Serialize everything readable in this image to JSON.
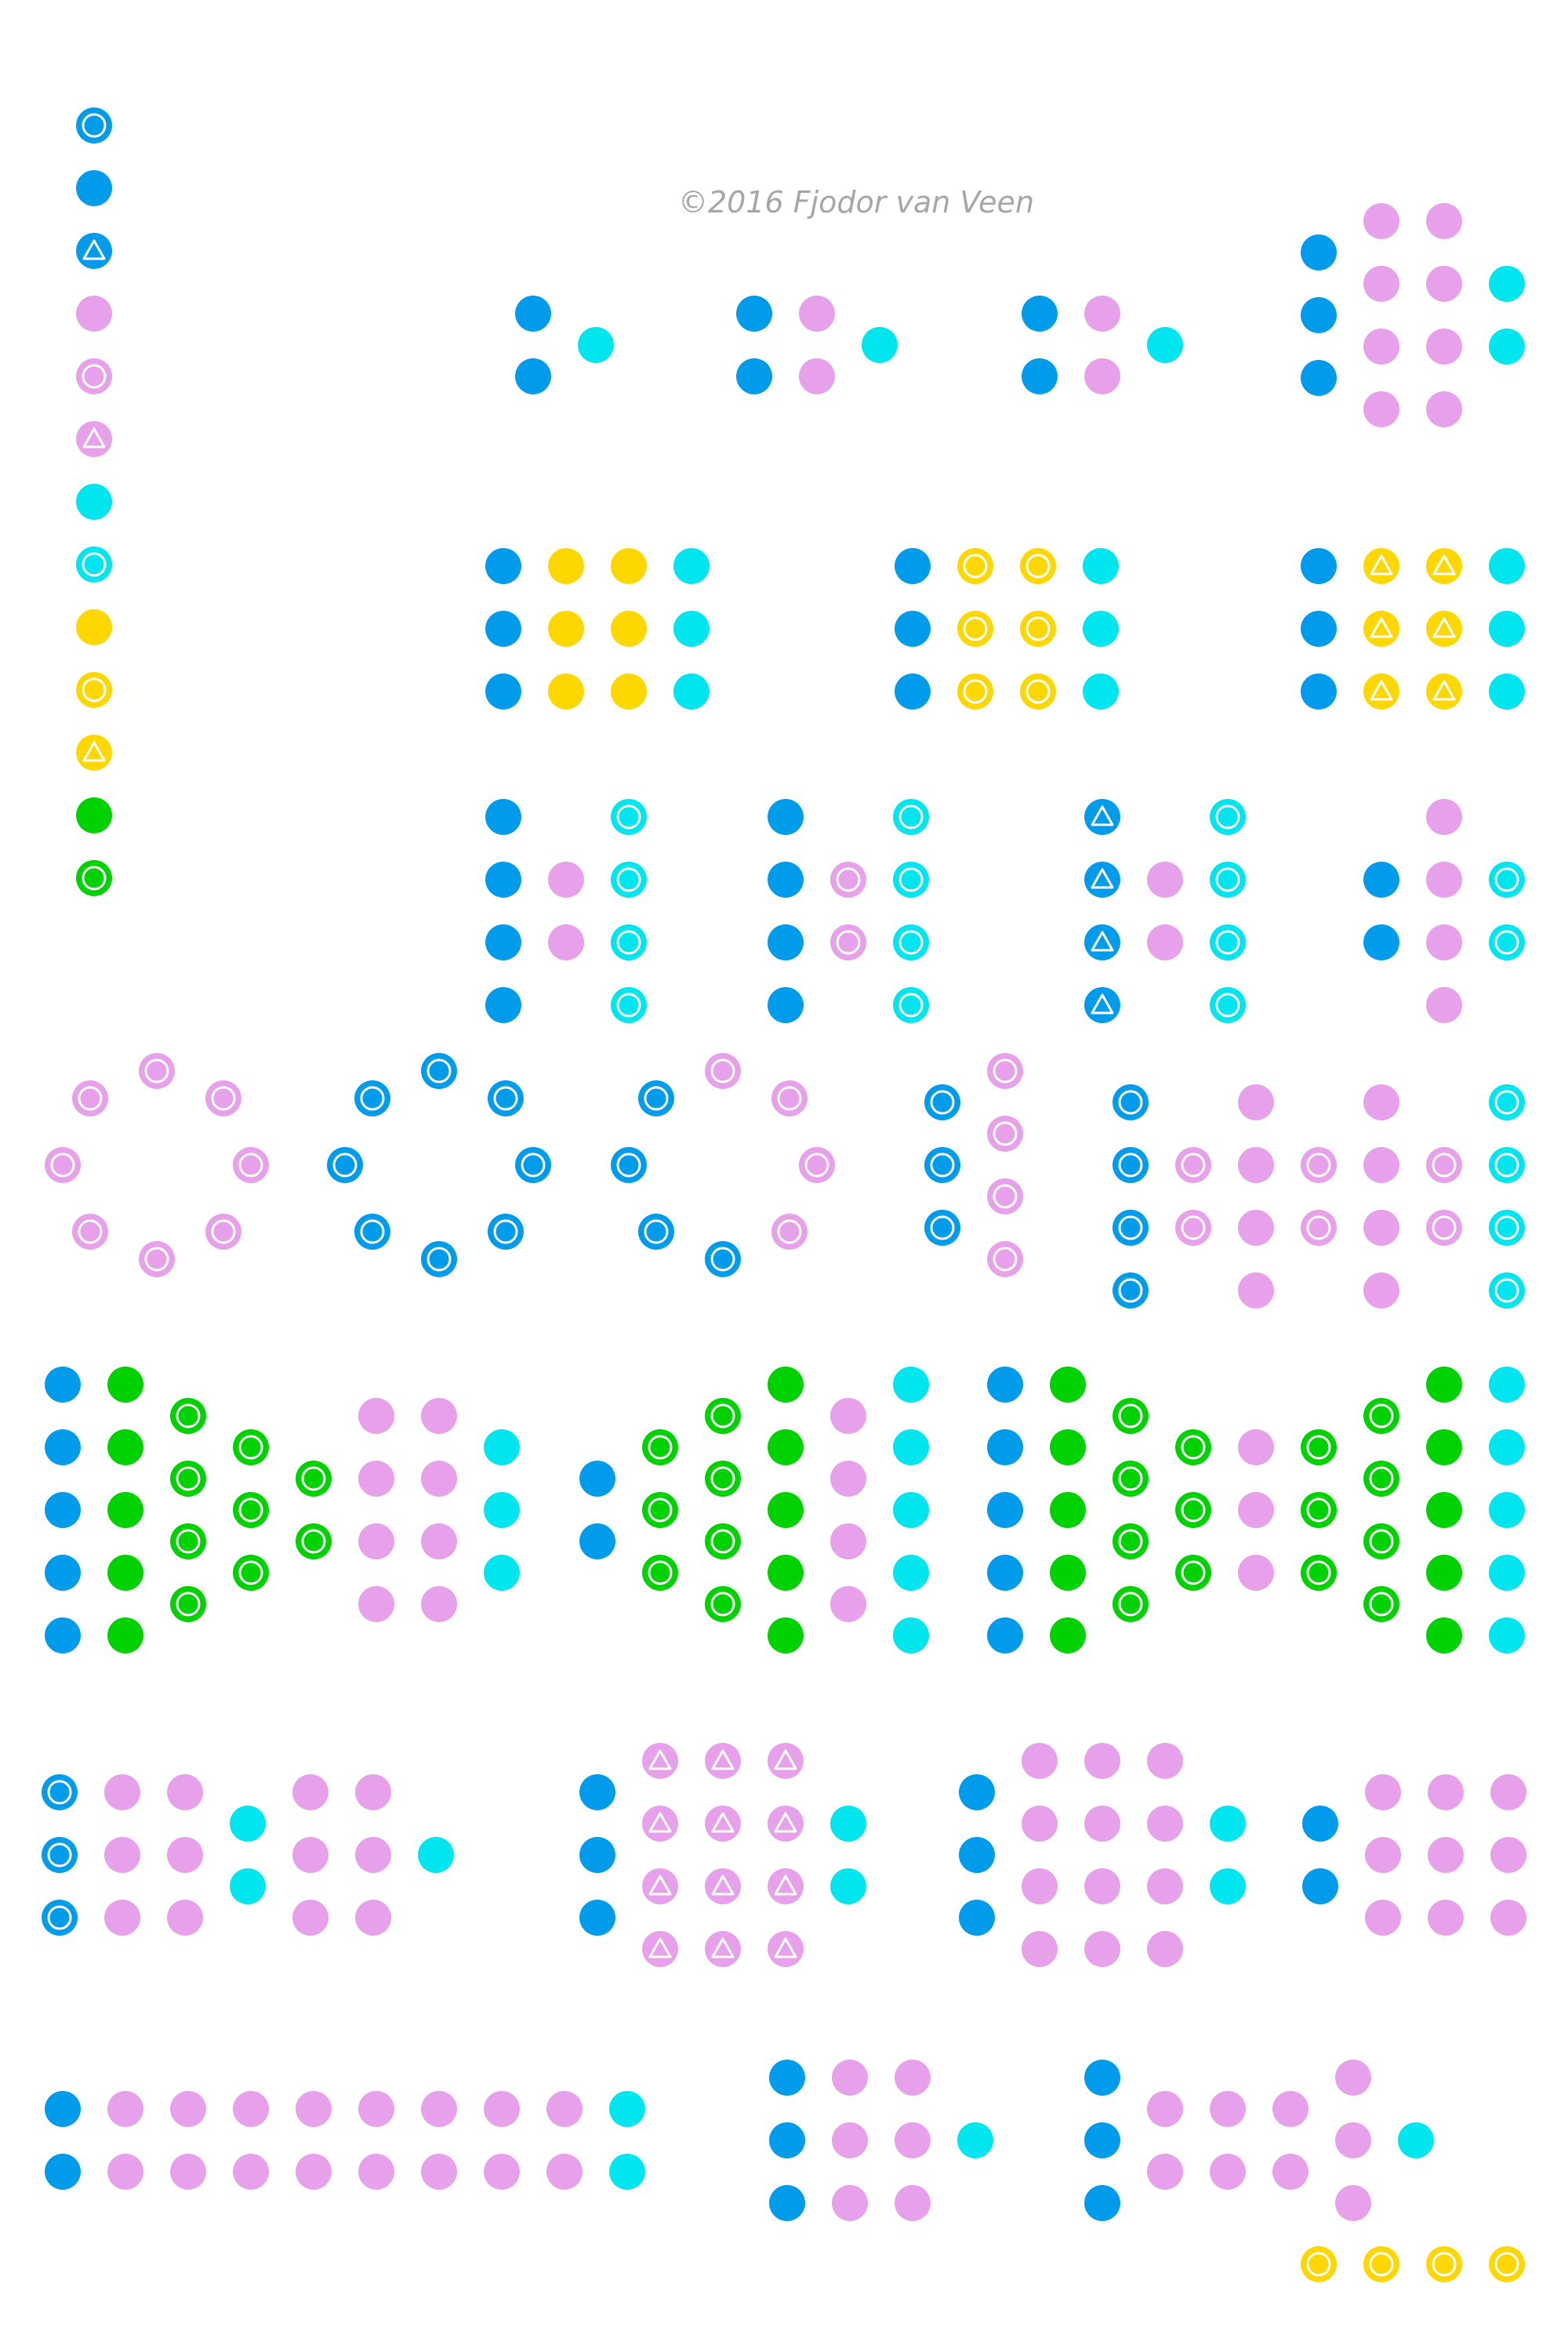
{
  "credit": "©2016 Fjodor van Veen",
  "colors": {
    "input": "#009ceb",
    "hidden": "#e6a1ea",
    "output": "#00e5ee",
    "yellow": "#ffd700",
    "green": "#00d100",
    "background": "#ffffff"
  },
  "legend": [
    {
      "color": "input",
      "marker": "circle"
    },
    {
      "color": "input",
      "marker": "none"
    },
    {
      "color": "input",
      "marker": "triangle"
    },
    {
      "color": "hidden",
      "marker": "none"
    },
    {
      "color": "hidden",
      "marker": "circle"
    },
    {
      "color": "hidden",
      "marker": "triangle"
    },
    {
      "color": "output",
      "marker": "none"
    },
    {
      "color": "output",
      "marker": "circle"
    },
    {
      "color": "yellow",
      "marker": "none"
    },
    {
      "color": "yellow",
      "marker": "circle"
    },
    {
      "color": "yellow",
      "marker": "triangle"
    },
    {
      "color": "green",
      "marker": "none"
    },
    {
      "color": "green",
      "marker": "circle"
    }
  ],
  "networks": [
    {
      "layers": [
        {
          "color": "input",
          "marker": "none",
          "count": 2
        },
        {
          "color": "output",
          "marker": "none",
          "count": 1
        }
      ]
    },
    {
      "layers": [
        {
          "color": "input",
          "marker": "none",
          "count": 2
        },
        {
          "color": "hidden",
          "marker": "none",
          "count": 2
        },
        {
          "color": "output",
          "marker": "none",
          "count": 1
        }
      ]
    },
    {
      "layers": [
        {
          "color": "input",
          "marker": "none",
          "count": 2
        },
        {
          "color": "hidden",
          "marker": "none",
          "count": 2
        },
        {
          "color": "output",
          "marker": "none",
          "count": 1
        }
      ]
    },
    {
      "layers": [
        {
          "color": "input",
          "marker": "none",
          "count": 3
        },
        {
          "color": "hidden",
          "marker": "none",
          "count": 4
        },
        {
          "color": "hidden",
          "marker": "none",
          "count": 4
        },
        {
          "color": "output",
          "marker": "none",
          "count": 2
        }
      ]
    },
    {
      "layers": [
        {
          "color": "input",
          "marker": "none",
          "count": 3
        },
        {
          "color": "yellow",
          "marker": "none",
          "count": 3
        },
        {
          "color": "yellow",
          "marker": "none",
          "count": 3
        },
        {
          "color": "output",
          "marker": "none",
          "count": 3
        }
      ]
    },
    {
      "layers": [
        {
          "color": "input",
          "marker": "none",
          "count": 3
        },
        {
          "color": "yellow",
          "marker": "circle",
          "count": 3
        },
        {
          "color": "yellow",
          "marker": "circle",
          "count": 3
        },
        {
          "color": "output",
          "marker": "none",
          "count": 3
        }
      ]
    },
    {
      "layers": [
        {
          "color": "input",
          "marker": "none",
          "count": 3
        },
        {
          "color": "yellow",
          "marker": "triangle",
          "count": 3
        },
        {
          "color": "yellow",
          "marker": "triangle",
          "count": 3
        },
        {
          "color": "output",
          "marker": "none",
          "count": 3
        }
      ]
    },
    {
      "layers": [
        {
          "color": "input",
          "marker": "none",
          "count": 4
        },
        {
          "color": "hidden",
          "marker": "none",
          "count": 2
        },
        {
          "color": "output",
          "marker": "circle",
          "count": 4
        }
      ]
    },
    {
      "layers": [
        {
          "color": "input",
          "marker": "none",
          "count": 4
        },
        {
          "color": "hidden",
          "marker": "circle",
          "count": 2
        },
        {
          "color": "output",
          "marker": "circle",
          "count": 4
        }
      ]
    },
    {
      "layers": [
        {
          "color": "input",
          "marker": "triangle",
          "count": 4
        },
        {
          "color": "hidden",
          "marker": "none",
          "count": 2
        },
        {
          "color": "output",
          "marker": "circle",
          "count": 4
        }
      ]
    },
    {
      "layers": [
        {
          "color": "input",
          "marker": "none",
          "count": 2
        },
        {
          "color": "hidden",
          "marker": "none",
          "count": 4
        },
        {
          "color": "output",
          "marker": "circle",
          "count": 2
        }
      ]
    },
    {
      "ring": {
        "color": "hidden",
        "marker": "circle"
      }
    },
    {
      "ring": {
        "color": "input",
        "marker": "circle"
      }
    },
    {
      "ring": {
        "color": "mixed",
        "marker": "circle"
      }
    },
    {
      "layers": [
        {
          "color": "input",
          "marker": "circle",
          "count": 3
        },
        {
          "color": "hidden",
          "marker": "circle",
          "count": 4
        }
      ]
    },
    {
      "layers": [
        {
          "color": "input",
          "marker": "circle",
          "count": 4
        },
        {
          "color": "hidden",
          "marker": "circle",
          "count": 2
        },
        {
          "color": "hidden",
          "marker": "none",
          "count": 4
        },
        {
          "color": "hidden",
          "marker": "circle",
          "count": 2
        },
        {
          "color": "hidden",
          "marker": "none",
          "count": 4
        },
        {
          "color": "hidden",
          "marker": "circle",
          "count": 2
        },
        {
          "color": "output",
          "marker": "circle",
          "count": 4
        }
      ]
    },
    {
      "layers": [
        {
          "color": "input",
          "marker": "none",
          "count": 5
        },
        {
          "color": "green",
          "marker": "none",
          "count": 5
        },
        {
          "color": "green",
          "marker": "circle",
          "count": 4
        },
        {
          "color": "green",
          "marker": "circle",
          "count": 3
        },
        {
          "color": "green",
          "marker": "circle",
          "count": 2
        },
        {
          "color": "hidden",
          "marker": "none",
          "count": 4
        },
        {
          "color": "hidden",
          "marker": "none",
          "count": 4
        },
        {
          "color": "output",
          "marker": "none",
          "count": 3
        }
      ]
    },
    {
      "layers": [
        {
          "color": "input",
          "marker": "none",
          "count": 2
        },
        {
          "color": "green",
          "marker": "circle",
          "count": 3
        },
        {
          "color": "green",
          "marker": "circle",
          "count": 4
        },
        {
          "color": "green",
          "marker": "none",
          "count": 5
        },
        {
          "color": "hidden",
          "marker": "none",
          "count": 4
        },
        {
          "color": "output",
          "marker": "none",
          "count": 5
        }
      ]
    },
    {
      "layers": [
        {
          "color": "input",
          "marker": "none",
          "count": 5
        },
        {
          "color": "green",
          "marker": "none",
          "count": 5
        },
        {
          "color": "green",
          "marker": "circle",
          "count": 4
        },
        {
          "color": "green",
          "marker": "circle",
          "count": 3
        },
        {
          "color": "hidden",
          "marker": "none",
          "count": 3
        },
        {
          "color": "green",
          "marker": "circle",
          "count": 3
        },
        {
          "color": "green",
          "marker": "circle",
          "count": 4
        },
        {
          "color": "green",
          "marker": "none",
          "count": 5
        },
        {
          "color": "output",
          "marker": "none",
          "count": 5
        }
      ]
    },
    {
      "layers": [
        {
          "color": "input",
          "marker": "circle",
          "count": 3
        },
        {
          "color": "hidden",
          "marker": "none",
          "count": 3
        },
        {
          "color": "hidden",
          "marker": "none",
          "count": 3
        },
        {
          "color": "output",
          "marker": "none",
          "count": 2
        },
        {
          "color": "hidden",
          "marker": "none",
          "count": 3
        },
        {
          "color": "hidden",
          "marker": "none",
          "count": 3
        },
        {
          "color": "output",
          "marker": "none",
          "count": 1
        }
      ]
    },
    {
      "layers": [
        {
          "color": "input",
          "marker": "none",
          "count": 3
        },
        {
          "color": "hidden",
          "marker": "triangle",
          "count": 4
        },
        {
          "color": "hidden",
          "marker": "triangle",
          "count": 4
        },
        {
          "color": "hidden",
          "marker": "triangle",
          "count": 4
        },
        {
          "color": "output",
          "marker": "none",
          "count": 2
        }
      ]
    },
    {
      "layers": [
        {
          "color": "input",
          "marker": "none",
          "count": 3
        },
        {
          "color": "hidden",
          "marker": "none",
          "count": 4
        },
        {
          "color": "hidden",
          "marker": "none",
          "count": 4
        },
        {
          "color": "hidden",
          "marker": "none",
          "count": 4
        },
        {
          "color": "output",
          "marker": "none",
          "count": 2
        }
      ]
    },
    {
      "layers": [
        {
          "color": "input",
          "marker": "none",
          "count": 2
        },
        {
          "color": "hidden",
          "marker": "none",
          "count": 3
        },
        {
          "color": "hidden",
          "marker": "none",
          "count": 3
        },
        {
          "color": "hidden",
          "marker": "none",
          "count": 3
        }
      ]
    },
    {
      "layers": [
        {
          "color": "input",
          "marker": "none",
          "count": 2
        },
        {
          "color": "hidden",
          "marker": "none",
          "count": 2
        },
        {
          "color": "hidden",
          "marker": "none",
          "count": 2
        },
        {
          "color": "hidden",
          "marker": "none",
          "count": 2
        },
        {
          "color": "hidden",
          "marker": "none",
          "count": 2
        },
        {
          "color": "hidden",
          "marker": "none",
          "count": 2
        },
        {
          "color": "hidden",
          "marker": "none",
          "count": 2
        },
        {
          "color": "hidden",
          "marker": "none",
          "count": 2
        },
        {
          "color": "hidden",
          "marker": "none",
          "count": 2
        },
        {
          "color": "output",
          "marker": "none",
          "count": 2
        }
      ]
    },
    {
      "layers": [
        {
          "color": "input",
          "marker": "none",
          "count": 3
        },
        {
          "color": "hidden",
          "marker": "none",
          "count": 3
        },
        {
          "color": "hidden",
          "marker": "none",
          "count": 3
        },
        {
          "color": "output",
          "marker": "none",
          "count": 1
        }
      ]
    },
    {
      "layers": [
        {
          "color": "input",
          "marker": "none",
          "count": 3
        },
        {
          "color": "hidden",
          "marker": "none",
          "count": 2
        },
        {
          "color": "hidden",
          "marker": "none",
          "count": 2
        },
        {
          "color": "hidden",
          "marker": "none",
          "count": 2
        },
        {
          "color": "hidden",
          "marker": "none",
          "count": 3
        },
        {
          "color": "output",
          "marker": "none",
          "count": 1
        }
      ]
    },
    {
      "row": {
        "color": "yellow",
        "marker": "circle",
        "count": 4
      }
    }
  ]
}
